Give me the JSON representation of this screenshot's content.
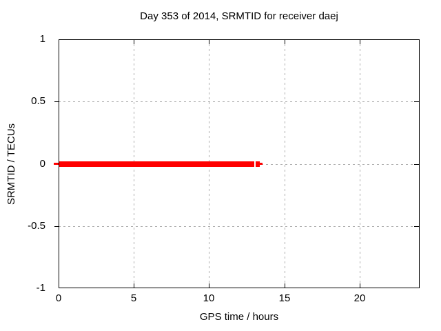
{
  "chart_data": {
    "type": "line",
    "title": "Day 353 of 2014, SRMTID for receiver daej",
    "xlabel": "GPS time / hours",
    "ylabel": "SRMTID / TECUs",
    "xlim": [
      0,
      24
    ],
    "ylim": [
      -1,
      1
    ],
    "grid": true,
    "legend_position": "none",
    "x_ticks": [
      {
        "value": 0,
        "label": "0"
      },
      {
        "value": 5,
        "label": "5"
      },
      {
        "value": 10,
        "label": "10"
      },
      {
        "value": 15,
        "label": "15"
      },
      {
        "value": 20,
        "label": "20"
      }
    ],
    "y_ticks": [
      {
        "value": 1,
        "label": "1"
      },
      {
        "value": 0.5,
        "label": "0.5"
      },
      {
        "value": 0,
        "label": "0"
      },
      {
        "value": -0.5,
        "label": "-0.5"
      },
      {
        "value": -1,
        "label": "-1"
      }
    ],
    "grid_x": [
      5,
      10,
      15,
      20
    ],
    "grid_y": [
      0.5,
      0,
      -0.5
    ],
    "left_outer_tick_values": [
      0.5,
      -0.5
    ],
    "right_inner_tick_values": [
      0.5,
      0,
      -0.5
    ],
    "series": [
      {
        "name": "SRMTID",
        "color": "#ff0000",
        "style": "dense square markers forming a thick horizontal bar at y=0",
        "segments": [
          {
            "x_start": -0.3,
            "x_end": 0.0,
            "y": 0,
            "weight": "thin"
          },
          {
            "x_start": 0.0,
            "x_end": 13.0,
            "y": 0,
            "weight": "thick"
          },
          {
            "x_start": 13.1,
            "x_end": 13.37,
            "y": 0,
            "weight": "thick"
          },
          {
            "x_start": 13.37,
            "x_end": 13.55,
            "y": 0,
            "weight": "thin"
          }
        ]
      }
    ]
  },
  "colors": {
    "background": "#ffffff",
    "axis": "#000000",
    "grid": "#adadad",
    "series": "#ff0000",
    "text": "#000000"
  }
}
